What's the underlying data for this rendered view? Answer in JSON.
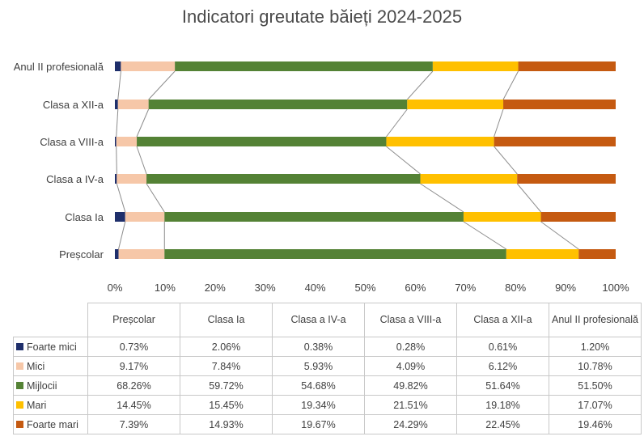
{
  "chart_data": {
    "type": "bar",
    "orientation": "horizontal-stacked-100",
    "title": "Indicatori greutate băieți 2024-2025",
    "categories": [
      "Preșcolar",
      "Clasa Ia",
      "Clasa a IV-a",
      "Clasa a VIII-a",
      "Clasa a XII-a",
      "Anul II profesională"
    ],
    "series": [
      {
        "name": "Foarte mici",
        "color": "#1f2f6b",
        "values": [
          0.73,
          2.06,
          0.38,
          0.28,
          0.61,
          1.2
        ],
        "labels": [
          "0.73%",
          "2.06%",
          "0.38%",
          "0.28%",
          "0.61%",
          "1.20%"
        ]
      },
      {
        "name": "Mici",
        "color": "#f6c7a8",
        "values": [
          9.17,
          7.84,
          5.93,
          4.09,
          6.12,
          10.78
        ],
        "labels": [
          "9.17%",
          "7.84%",
          "5.93%",
          "4.09%",
          "6.12%",
          "10.78%"
        ]
      },
      {
        "name": "Mijlocii",
        "color": "#548235",
        "values": [
          68.26,
          59.72,
          54.68,
          49.82,
          51.64,
          51.5
        ],
        "labels": [
          "68.26%",
          "59.72%",
          "54.68%",
          "49.82%",
          "51.64%",
          "51.50%"
        ]
      },
      {
        "name": "Mari",
        "color": "#ffc000",
        "values": [
          14.45,
          15.45,
          19.34,
          21.51,
          19.18,
          17.07
        ],
        "labels": [
          "14.45%",
          "15.45%",
          "19.34%",
          "21.51%",
          "19.18%",
          "17.07%"
        ]
      },
      {
        "name": "Foarte mari",
        "color": "#c55a11",
        "values": [
          7.39,
          14.93,
          19.67,
          24.29,
          22.45,
          19.46
        ],
        "labels": [
          "7.39%",
          "14.93%",
          "19.67%",
          "24.29%",
          "22.45%",
          "19.46%"
        ]
      }
    ],
    "xaxis": {
      "ticks": [
        "0%",
        "10%",
        "20%",
        "30%",
        "40%",
        "50%",
        "60%",
        "70%",
        "80%",
        "90%",
        "100%"
      ],
      "range": [
        0,
        100
      ]
    },
    "series_lines": true,
    "grid": false,
    "legend": "data-table"
  }
}
